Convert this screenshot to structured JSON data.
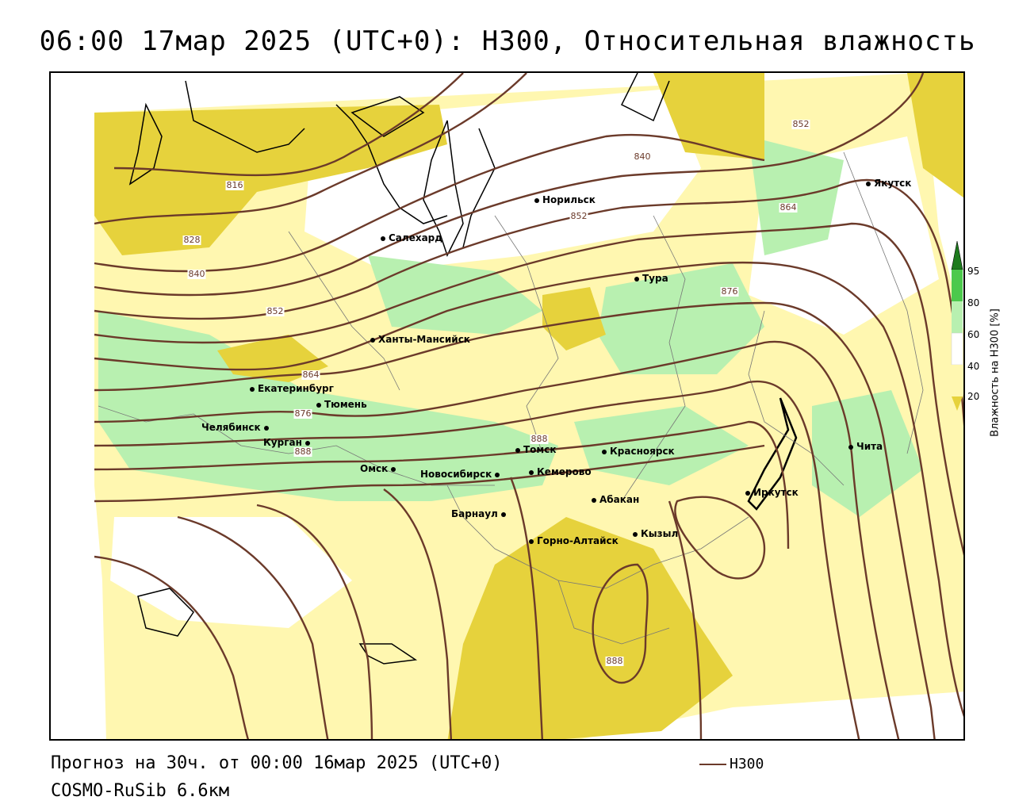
{
  "title": "06:00 17мар 2025 (UTC+0): H300, Относительная влажность",
  "footer": {
    "forecast": "Прогноз на 30ч. от 00:00 16мар 2025 (UTC+0)",
    "model": "COSMO-RuSib 6.6км"
  },
  "line_legend": {
    "label": "H300",
    "color": "#6b3a2a"
  },
  "legend": {
    "title": "Влажность на H300 [%]",
    "ticks": [
      "95",
      "80",
      "60",
      "40",
      "20"
    ],
    "colors": {
      "95": "#1e7b1e",
      "80": "#4cc94c",
      "60": "#b8f0b0",
      "40": "#ffffff",
      "20": "#fff7b0",
      "low": "#e6d23c"
    }
  },
  "cities": [
    {
      "name": "Норильск"
    },
    {
      "name": "Якутск"
    },
    {
      "name": "Салехард"
    },
    {
      "name": "Тура"
    },
    {
      "name": "Ханты-Мансийск"
    },
    {
      "name": "Екатеринбург"
    },
    {
      "name": "Тюмень"
    },
    {
      "name": "Челябинск"
    },
    {
      "name": "Курган"
    },
    {
      "name": "Омск"
    },
    {
      "name": "Новосибирск"
    },
    {
      "name": "Томск"
    },
    {
      "name": "Кемерово"
    },
    {
      "name": "Красноярск"
    },
    {
      "name": "Абакан"
    },
    {
      "name": "Барнаул"
    },
    {
      "name": "Горно-Алтайск"
    },
    {
      "name": "Кызыл"
    },
    {
      "name": "Иркутск"
    },
    {
      "name": "Чита"
    }
  ],
  "contour_labels": [
    "816",
    "828",
    "840",
    "852",
    "864",
    "876",
    "888",
    "840",
    "852",
    "852",
    "864",
    "876",
    "888",
    "888"
  ]
}
